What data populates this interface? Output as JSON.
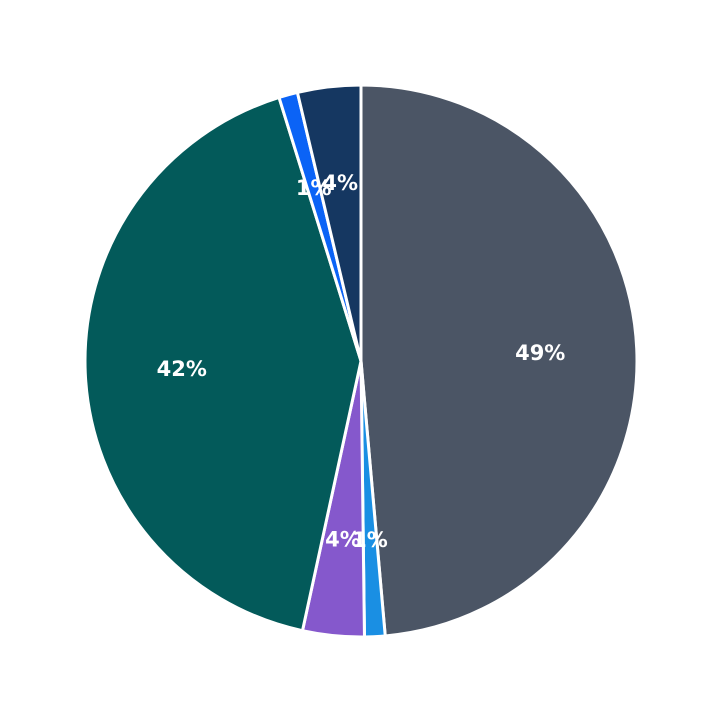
{
  "chart_data": {
    "type": "pie",
    "title": "",
    "start_angle_deg": 90,
    "direction": "clockwise",
    "center": [
      361,
      361
    ],
    "radius": 276,
    "slices": [
      {
        "name": "slice-1",
        "value": 48.6,
        "label": "49%",
        "color": "#4b5565"
      },
      {
        "name": "slice-2",
        "value": 1.2,
        "label": "1%",
        "color": "#1a8fe3"
      },
      {
        "name": "slice-3",
        "value": 3.6,
        "label": "4%",
        "color": "#8558cc"
      },
      {
        "name": "slice-4",
        "value": 41.8,
        "label": "42%",
        "color": "#035a5a"
      },
      {
        "name": "slice-5",
        "value": 1.1,
        "label": "1%",
        "color": "#0b63f6"
      },
      {
        "name": "slice-6",
        "value": 3.7,
        "label": "4%",
        "color": "#153761"
      }
    ],
    "label_color": "#ffffff",
    "edge_color": "#ffffff",
    "legend": null
  }
}
